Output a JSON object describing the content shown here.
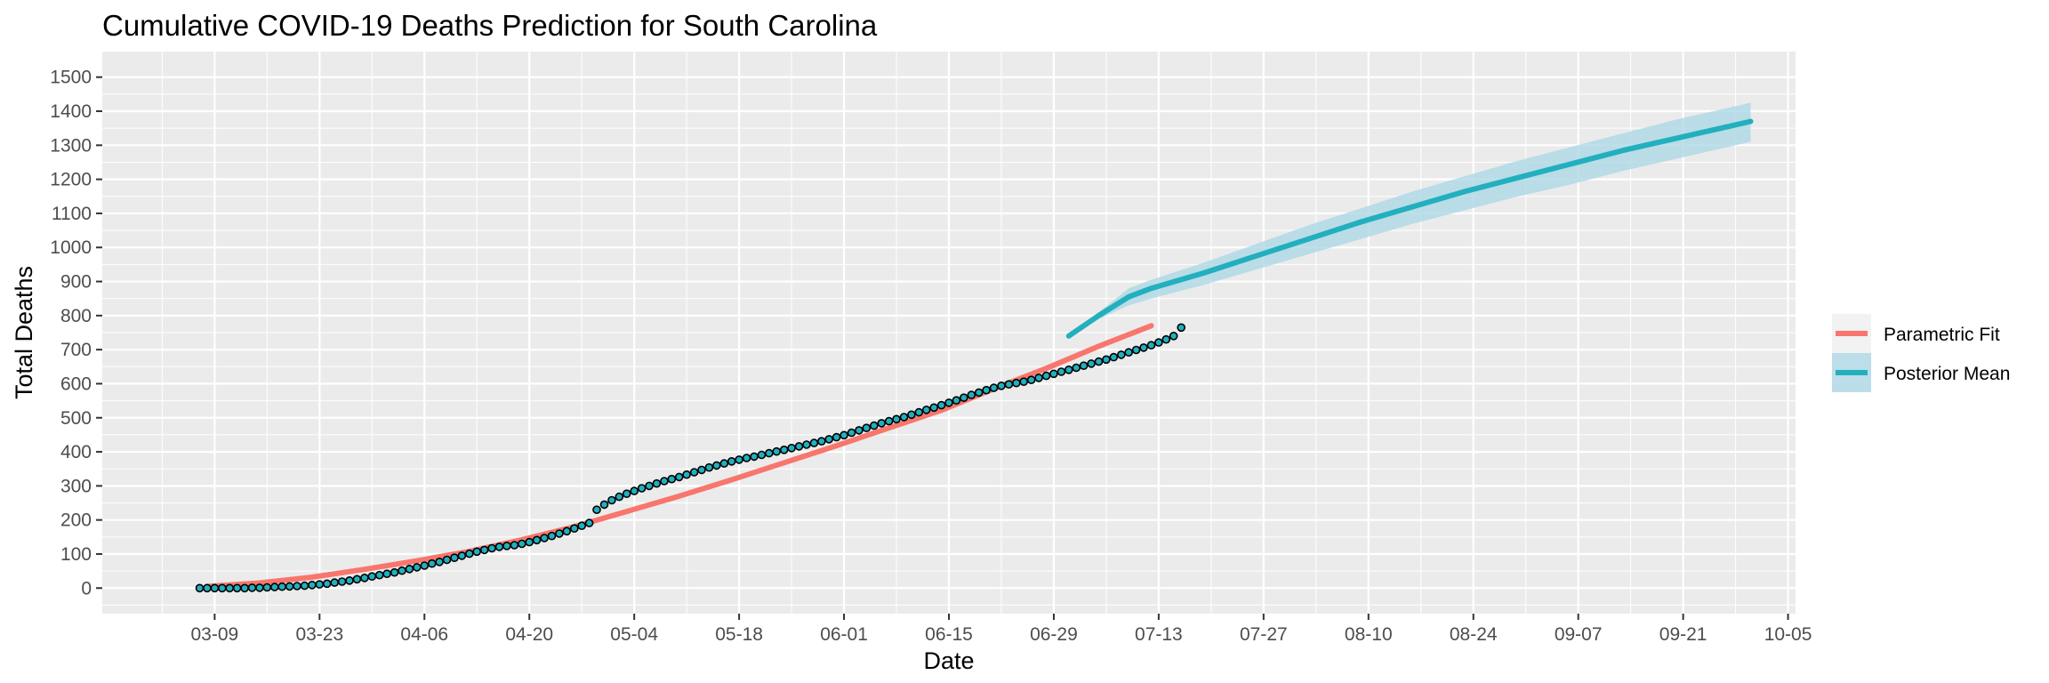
{
  "chart_data": {
    "type": "line",
    "title": "Cumulative COVID-19 Deaths Prediction for South Carolina",
    "xlabel": "Date",
    "ylabel": "Total Deaths",
    "x_range": [
      "2020-02-23",
      "2020-10-06"
    ],
    "ylim": [
      -75,
      1575
    ],
    "x_ticks": [
      "03-09",
      "03-23",
      "04-06",
      "04-20",
      "05-04",
      "05-18",
      "06-01",
      "06-15",
      "06-29",
      "07-13",
      "07-27",
      "08-10",
      "08-24",
      "09-07",
      "09-21",
      "10-05"
    ],
    "y_ticks": [
      0,
      100,
      200,
      300,
      400,
      500,
      600,
      700,
      800,
      900,
      1000,
      1100,
      1200,
      1300,
      1400,
      1500
    ],
    "grid": true,
    "legend": {
      "position": "right",
      "entries": [
        "Parametric Fit",
        "Posterior Mean"
      ]
    },
    "colors": {
      "parametric": "#F8766D",
      "posterior": "#22AFBE",
      "band": "#ADD8E6",
      "panel": "#EBEBEB",
      "grid": "#FFFFFF",
      "point_fill": "#22AFBE",
      "point_stroke": "#000000"
    },
    "series": [
      {
        "name": "Parametric Fit",
        "x": [
          "2020-03-08",
          "2020-03-15",
          "2020-03-22",
          "2020-03-29",
          "2020-04-05",
          "2020-04-12",
          "2020-04-19",
          "2020-04-26",
          "2020-05-03",
          "2020-05-10",
          "2020-05-17",
          "2020-05-24",
          "2020-05-31",
          "2020-06-07",
          "2020-06-14",
          "2020-06-21",
          "2020-06-28",
          "2020-07-05",
          "2020-07-12"
        ],
        "y": [
          5,
          15,
          32,
          55,
          80,
          108,
          142,
          180,
          225,
          270,
          318,
          368,
          418,
          470,
          522,
          585,
          645,
          710,
          770
        ]
      },
      {
        "name": "Posterior Mean",
        "x": [
          "2020-07-01",
          "2020-07-05",
          "2020-07-09",
          "2020-07-12",
          "2020-07-19",
          "2020-07-26",
          "2020-08-02",
          "2020-08-09",
          "2020-08-16",
          "2020-08-23",
          "2020-08-30",
          "2020-09-06",
          "2020-09-13",
          "2020-09-20",
          "2020-09-27",
          "2020-09-30"
        ],
        "y": [
          740,
          800,
          855,
          880,
          925,
          975,
          1025,
          1075,
          1120,
          1165,
          1205,
          1245,
          1285,
          1320,
          1355,
          1370
        ],
        "band_lower": [
          740,
          790,
          830,
          850,
          890,
          935,
          980,
          1025,
          1070,
          1110,
          1150,
          1185,
          1225,
          1260,
          1295,
          1310
        ],
        "band_upper": [
          740,
          810,
          880,
          905,
          955,
          1010,
          1065,
          1115,
          1165,
          1210,
          1255,
          1295,
          1335,
          1375,
          1410,
          1425
        ]
      },
      {
        "name": "Observed",
        "x_start": "2020-03-07",
        "y": [
          0,
          0,
          0,
          0,
          0,
          0,
          0,
          1,
          1,
          2,
          3,
          4,
          5,
          6,
          7,
          9,
          11,
          13,
          16,
          19,
          22,
          26,
          30,
          34,
          38,
          42,
          46,
          51,
          56,
          61,
          66,
          72,
          77,
          83,
          89,
          95,
          101,
          107,
          112,
          117,
          121,
          124,
          126,
          130,
          135,
          141,
          147,
          153,
          160,
          167,
          175,
          183,
          191,
          230,
          245,
          258,
          268,
          277,
          285,
          293,
          300,
          307,
          314,
          320,
          326,
          333,
          340,
          347,
          354,
          360,
          366,
          372,
          377,
          382,
          386,
          391,
          396,
          401,
          406,
          411,
          416,
          421,
          426,
          431,
          437,
          443,
          449,
          456,
          463,
          470,
          477,
          484,
          490,
          496,
          502,
          509,
          516,
          523,
          530,
          537,
          544,
          551,
          559,
          567,
          574,
          581,
          588,
          594,
          598,
          602,
          606,
          611,
          617,
          623,
          629,
          635,
          641,
          647,
          653,
          659,
          665,
          671,
          678,
          685,
          692,
          699,
          706,
          713,
          721,
          730,
          740,
          765
        ]
      }
    ]
  }
}
